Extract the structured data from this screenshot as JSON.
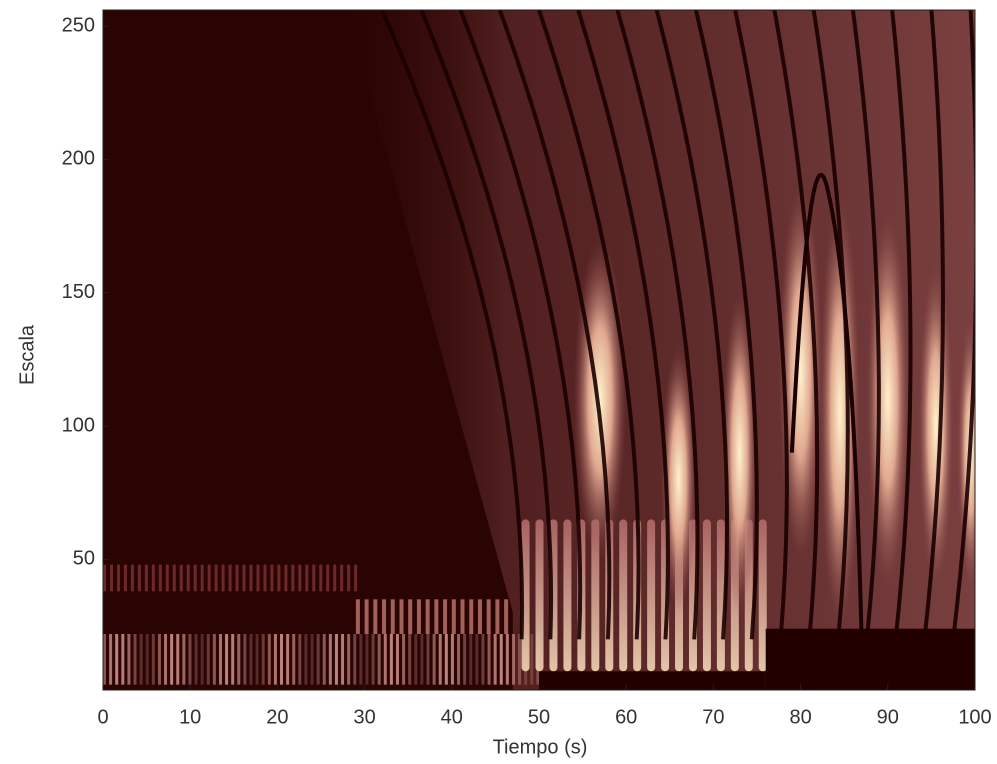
{
  "chart_data": {
    "type": "heatmap",
    "x_label": "Tiempo (s)",
    "y_label": "Escala",
    "xlim": [
      0,
      100
    ],
    "xticks": [
      0,
      10,
      20,
      30,
      40,
      50,
      60,
      70,
      80,
      90,
      100
    ],
    "ylim": [
      1,
      256
    ],
    "yticks": [
      50,
      100,
      150,
      200,
      250
    ],
    "colormap": "pink"
  }
}
